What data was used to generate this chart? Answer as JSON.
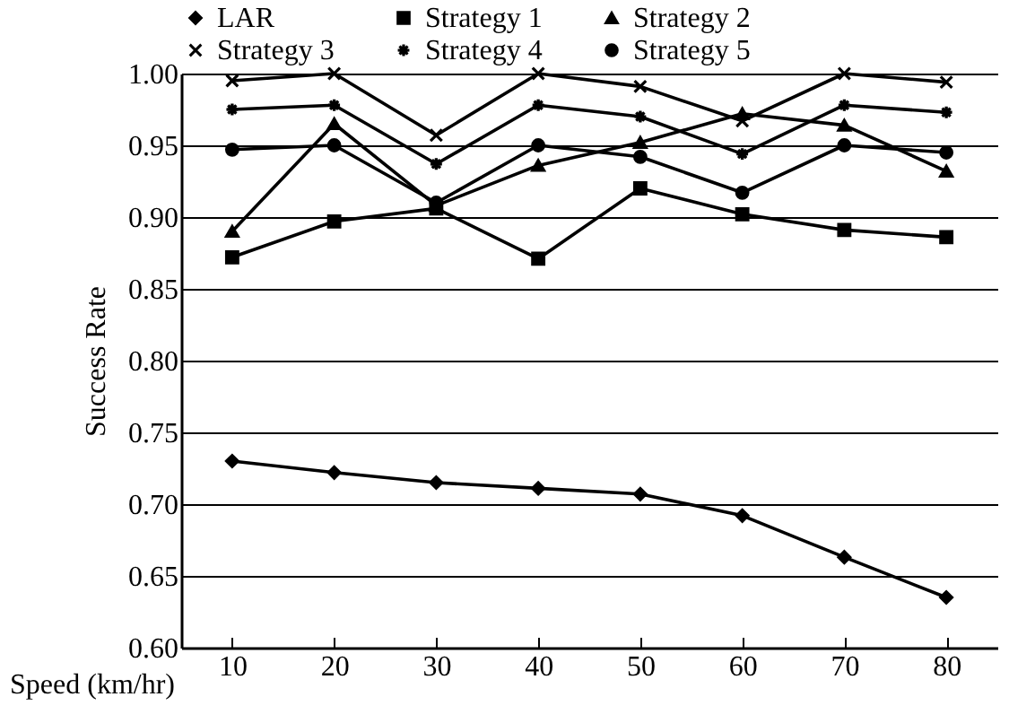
{
  "chart_data": {
    "type": "line",
    "xlabel": "Speed (km/hr)",
    "ylabel": "Success Rate",
    "categories": [
      "10",
      "20",
      "30",
      "40",
      "50",
      "60",
      "70",
      "80"
    ],
    "ylim": [
      0.6,
      1.0
    ],
    "yticks": [
      {
        "value": 0.6,
        "label": "0.60"
      },
      {
        "value": 0.65,
        "label": "0.65"
      },
      {
        "value": 0.7,
        "label": "0.70"
      },
      {
        "value": 0.75,
        "label": "0.75"
      },
      {
        "value": 0.8,
        "label": "0.80"
      },
      {
        "value": 0.85,
        "label": "0.85"
      },
      {
        "value": 0.9,
        "label": "0.90"
      },
      {
        "value": 0.95,
        "label": "0.95"
      },
      {
        "value": 1.0,
        "label": "1.00"
      }
    ],
    "grid": "y",
    "legend": "top",
    "line_style": "solid",
    "series": [
      {
        "name": "LAR",
        "color": "#000000",
        "marker": "diamond",
        "values": [
          0.73,
          0.722,
          0.715,
          0.711,
          0.707,
          0.692,
          0.663,
          0.635
        ]
      },
      {
        "name": "Strategy 1",
        "color": "#000000",
        "marker": "square",
        "values": [
          0.872,
          0.897,
          0.906,
          0.871,
          0.92,
          0.902,
          0.891,
          0.886
        ]
      },
      {
        "name": "Strategy 2",
        "color": "#000000",
        "marker": "triangle",
        "values": [
          0.89,
          0.965,
          0.908,
          0.936,
          0.952,
          0.972,
          0.964,
          0.932
        ]
      },
      {
        "name": "Strategy 3",
        "color": "#000000",
        "marker": "cross",
        "values": [
          0.995,
          1.0,
          0.957,
          1.0,
          0.991,
          0.967,
          1.0,
          0.994
        ]
      },
      {
        "name": "Strategy 4",
        "color": "#000000",
        "marker": "star",
        "values": [
          0.975,
          0.978,
          0.937,
          0.978,
          0.97,
          0.944,
          0.978,
          0.973
        ]
      },
      {
        "name": "Strategy 5",
        "color": "#000000",
        "marker": "circle",
        "values": [
          0.947,
          0.95,
          0.91,
          0.95,
          0.942,
          0.917,
          0.95,
          0.945
        ]
      }
    ]
  }
}
